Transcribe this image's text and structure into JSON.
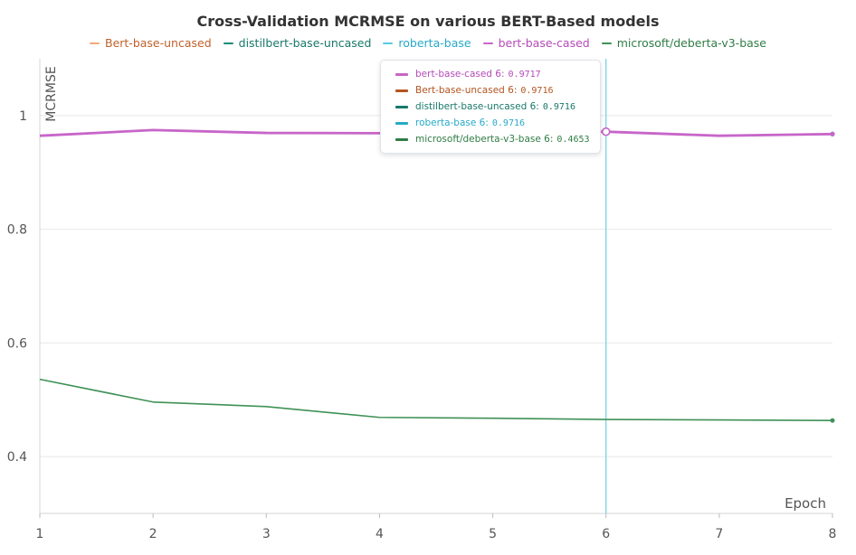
{
  "chart_data": {
    "type": "line",
    "title": "Cross-Validation MCRMSE on various BERT-Based models",
    "xlabel": "Epoch",
    "ylabel": "MCRMSE",
    "x": [
      1,
      2,
      3,
      4,
      5,
      6,
      7,
      8
    ],
    "xlim": [
      1,
      8
    ],
    "ylim": [
      0.3,
      1.1
    ],
    "xticks": [
      1,
      2,
      3,
      4,
      5,
      6,
      7,
      8
    ],
    "yticks": [
      0.4,
      0.6,
      0.8,
      1
    ],
    "ytick_labels": [
      "0.4",
      "0.6",
      "0.8",
      "1"
    ],
    "grid": true,
    "legend_position": "top-center",
    "series": [
      {
        "name": "Bert-base-uncased",
        "color": "#f4a97a",
        "text_color": "#c0612b",
        "values": [
          0.9645,
          0.9745,
          0.9695,
          0.969,
          0.9705,
          0.9716,
          0.9645,
          0.9675
        ]
      },
      {
        "name": "distilbert-base-uncased",
        "color": "#1a8a78",
        "text_color": "#17786a",
        "values": [
          0.9645,
          0.9745,
          0.9695,
          0.969,
          0.9705,
          0.9716,
          0.9645,
          0.9675
        ]
      },
      {
        "name": "roberta-base",
        "color": "#5bc8e0",
        "text_color": "#26a9c8",
        "values": [
          0.9645,
          0.9745,
          0.9695,
          0.969,
          0.9705,
          0.9716,
          0.9645,
          0.9675
        ]
      },
      {
        "name": "bert-base-cased",
        "color": "#c765c9",
        "text_color": "#b54ab8",
        "values": [
          0.9645,
          0.9745,
          0.9695,
          0.969,
          0.9705,
          0.9717,
          0.9645,
          0.9675
        ]
      },
      {
        "name": "microsoft/deberta-v3-base",
        "color": "#3f9156",
        "text_color": "#2f7d45",
        "values": [
          0.536,
          0.496,
          0.488,
          0.469,
          0.4675,
          0.4653,
          0.4645,
          0.4635
        ]
      }
    ],
    "hover": {
      "x": 6,
      "crosshair_color": "#6fcfe0",
      "rows": [
        {
          "label": "bert-base-cased",
          "x_text": "6",
          "value": "0.9717",
          "color": "#c765c9",
          "text_color": "#b54ab8"
        },
        {
          "label": "Bert-base-uncased",
          "x_text": "6",
          "value": "0.9716",
          "color": "#b5541f",
          "text_color": "#b5541f"
        },
        {
          "label": "distilbert-base-uncased",
          "x_text": "6",
          "value": "0.9716",
          "color": "#17786a",
          "text_color": "#17786a"
        },
        {
          "label": "roberta-base",
          "x_text": "6",
          "value": "0.9716",
          "color": "#26a9c8",
          "text_color": "#26a9c8"
        },
        {
          "label": "microsoft/deberta-v3-base",
          "x_text": "6",
          "value": "0.4653",
          "color": "#2f7d45",
          "text_color": "#2f7d45"
        }
      ]
    }
  }
}
